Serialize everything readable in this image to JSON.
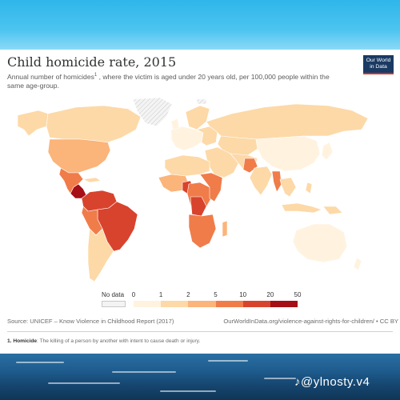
{
  "title": "Child homicide rate, 2015",
  "subtitle_pre": "Annual number of homicides",
  "subtitle_sup": "1",
  "subtitle_post": " , where the victim is aged under 20 years old, per 100,000 people within the same age-group.",
  "logo": {
    "line1": "Our World",
    "line2": "in Data"
  },
  "legend": {
    "no_data_label": "No data",
    "ticks": [
      "0",
      "1",
      "2",
      "5",
      "10",
      "20",
      "50"
    ],
    "colors": [
      "#fff3e0",
      "#fdd9a8",
      "#fbb47a",
      "#f07c4a",
      "#d8432e",
      "#a50f15"
    ],
    "no_data_color": "#f3f3f3"
  },
  "source": "Source: UNICEF – Know Violence in Childhood Report (2017)",
  "url": "OurWorldInData.org/violence-against-rights-for-children/ • CC BY",
  "footnote": {
    "number": "1.",
    "term": "Homicide",
    "text": ": The killing of a person by another with intent to cause death or injury."
  },
  "watermark": "♪@ylnosty.v4"
}
